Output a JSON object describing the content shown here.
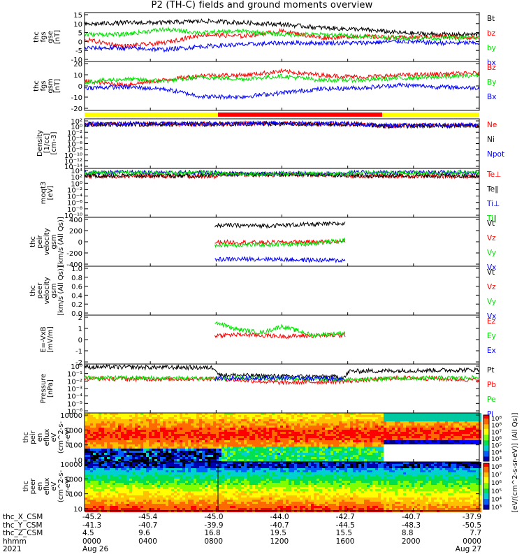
{
  "title": "P2 (TH-C) fields and ground moments overview",
  "colors": {
    "black": "#000000",
    "red": "#ff0000",
    "green": "#00e000",
    "blue": "#0000ff",
    "yellow": "#ffff00",
    "navy": "#0000c0",
    "teal": "#2a8a8a"
  },
  "chart_data": [
    {
      "type": "line",
      "ylabel": [
        "thc",
        "fgs",
        "gse",
        "[nT]"
      ],
      "yticks": [
        "15",
        "10",
        "5",
        "0",
        "-5",
        "-10"
      ],
      "ylim": [
        -13,
        16
      ],
      "series": [
        {
          "name": "Bt",
          "color": "black",
          "pts": [
            [
              0,
              9
            ],
            [
              0.1,
              10
            ],
            [
              0.2,
              10
            ],
            [
              0.3,
              11
            ],
            [
              0.4,
              10
            ],
            [
              0.5,
              9
            ],
            [
              0.6,
              7
            ],
            [
              0.7,
              6
            ],
            [
              0.8,
              4
            ],
            [
              0.9,
              3
            ],
            [
              1,
              3
            ]
          ]
        },
        {
          "name": "bz",
          "color": "red",
          "pts": [
            [
              0,
              0
            ],
            [
              0.1,
              -4
            ],
            [
              0.2,
              -2
            ],
            [
              0.3,
              3
            ],
            [
              0.4,
              2
            ],
            [
              0.5,
              5
            ],
            [
              0.6,
              1
            ],
            [
              0.7,
              2
            ],
            [
              0.8,
              1
            ],
            [
              0.9,
              2
            ],
            [
              1,
              1
            ]
          ]
        },
        {
          "name": "by",
          "color": "green",
          "pts": [
            [
              0,
              3
            ],
            [
              0.1,
              3
            ],
            [
              0.2,
              6
            ],
            [
              0.3,
              4
            ],
            [
              0.4,
              5
            ],
            [
              0.5,
              3
            ],
            [
              0.6,
              3
            ],
            [
              0.7,
              2
            ],
            [
              0.8,
              1
            ],
            [
              0.9,
              1
            ],
            [
              1,
              1
            ]
          ]
        },
        {
          "name": "bx",
          "color": "blue",
          "pts": [
            [
              0,
              -5
            ],
            [
              0.1,
              -5
            ],
            [
              0.2,
              -6
            ],
            [
              0.3,
              -4
            ],
            [
              0.4,
              -3
            ],
            [
              0.5,
              -2
            ],
            [
              0.6,
              -2
            ],
            [
              0.7,
              -2
            ],
            [
              0.8,
              -1
            ],
            [
              0.9,
              -2
            ],
            [
              1,
              -2
            ]
          ]
        }
      ]
    },
    {
      "type": "line",
      "ylabel": [
        "thc",
        "fgs",
        "gsm",
        "[nT]"
      ],
      "yticks": [
        "20",
        "10",
        "0",
        "-10",
        "-20"
      ],
      "ylim": [
        -28,
        22
      ],
      "series": [
        {
          "name": "Bz",
          "color": "red",
          "pts": [
            [
              0,
              2
            ],
            [
              0.1,
              -2
            ],
            [
              0.2,
              3
            ],
            [
              0.3,
              8
            ],
            [
              0.4,
              8
            ],
            [
              0.5,
              12
            ],
            [
              0.6,
              8
            ],
            [
              0.7,
              6
            ],
            [
              0.8,
              8
            ],
            [
              0.9,
              9
            ],
            [
              1,
              10
            ]
          ]
        },
        {
          "name": "By",
          "color": "green",
          "pts": [
            [
              0,
              1
            ],
            [
              0.1,
              4
            ],
            [
              0.2,
              2
            ],
            [
              0.3,
              6
            ],
            [
              0.4,
              4
            ],
            [
              0.5,
              7
            ],
            [
              0.6,
              3
            ],
            [
              0.7,
              3
            ],
            [
              0.8,
              5
            ],
            [
              0.9,
              6
            ],
            [
              1,
              8
            ]
          ]
        },
        {
          "name": "Bx",
          "color": "blue",
          "pts": [
            [
              0,
              -5
            ],
            [
              0.1,
              -4
            ],
            [
              0.2,
              -6
            ],
            [
              0.3,
              -14
            ],
            [
              0.4,
              -14
            ],
            [
              0.5,
              -10
            ],
            [
              0.6,
              -6
            ],
            [
              0.7,
              -5
            ],
            [
              0.8,
              -2
            ],
            [
              0.9,
              -4
            ],
            [
              1,
              -5
            ]
          ]
        }
      ]
    },
    {
      "type": "line",
      "ylabel": [
        "Density",
        "[1/cc]",
        "[cm-3]"
      ],
      "yticks": [
        "10²",
        "10⁰",
        "10⁻²",
        "10⁻⁴",
        "10⁻⁶",
        "10⁻⁸",
        "10⁻¹⁰",
        "10⁻¹²",
        "10⁻¹⁴"
      ],
      "ylim": [
        -15,
        2.6
      ],
      "series": [
        {
          "name": "Ne",
          "color": "red",
          "pts": [
            [
              0,
              0.7
            ],
            [
              0.3,
              0.8
            ],
            [
              0.5,
              0.9
            ],
            [
              0.7,
              0.7
            ],
            [
              0.75,
              0.1
            ],
            [
              1,
              0.3
            ]
          ]
        },
        {
          "name": "Ni",
          "color": "black",
          "pts": [
            [
              0,
              0.6
            ],
            [
              0.3,
              0.7
            ],
            [
              0.5,
              0.8
            ],
            [
              0.7,
              0.6
            ],
            [
              0.75,
              0.0
            ],
            [
              1,
              0.2
            ]
          ]
        },
        {
          "name": "Npot",
          "color": "blue",
          "pts": [
            [
              0,
              0.8
            ],
            [
              0.3,
              0.9
            ],
            [
              0.5,
              1.0
            ],
            [
              0.7,
              0.8
            ],
            [
              0.75,
              0.2
            ],
            [
              1,
              0.4
            ]
          ]
        }
      ]
    },
    {
      "type": "line",
      "ylabel": [
        "moqt3",
        "[eV]"
      ],
      "yticks": [
        "10⁴",
        "10²",
        "10⁰",
        "10⁻²",
        "10⁻⁴",
        "10⁻⁶",
        "10⁻⁸",
        "10⁻¹⁰"
      ],
      "ylim": [
        -10.5,
        4.8
      ],
      "series": [
        {
          "name": "Te⊥",
          "color": "red",
          "pts": [
            [
              0,
              2.4
            ],
            [
              0.33,
              2.4
            ],
            [
              0.34,
              2.9
            ],
            [
              0.66,
              2.7
            ],
            [
              0.67,
              2.4
            ],
            [
              1,
              2.4
            ]
          ]
        },
        {
          "name": "Te∥",
          "color": "black",
          "pts": [
            [
              0,
              2.5
            ],
            [
              0.33,
              2.5
            ],
            [
              0.34,
              3.0
            ],
            [
              0.66,
              2.8
            ],
            [
              0.67,
              2.5
            ],
            [
              1,
              2.5
            ]
          ]
        },
        {
          "name": "Ti⊥",
          "color": "navy",
          "pts": [
            [
              0,
              3.5
            ],
            [
              0.33,
              3.5
            ],
            [
              0.34,
              3.2
            ],
            [
              0.66,
              3.2
            ],
            [
              0.67,
              3.5
            ],
            [
              1,
              3.5
            ]
          ]
        },
        {
          "name": "Ti∥",
          "color": "green",
          "pts": [
            [
              0,
              3.4
            ],
            [
              0.33,
              3.4
            ],
            [
              0.34,
              3.1
            ],
            [
              0.66,
              3.1
            ],
            [
              0.67,
              3.4
            ],
            [
              1,
              3.4
            ]
          ]
        }
      ]
    },
    {
      "type": "line",
      "ylabel": [
        "thc",
        "peir",
        "velocity",
        "gsm",
        "[km/s (All Qs)]"
      ],
      "yticks": [
        "400",
        "200",
        "0",
        "-200",
        "-400"
      ],
      "ylim": [
        -450,
        480
      ],
      "series": [
        {
          "name": "Vt",
          "color": "black",
          "pts": [
            [
              0.33,
              330
            ],
            [
              0.45,
              320
            ],
            [
              0.55,
              340
            ],
            [
              0.66,
              360
            ]
          ]
        },
        {
          "name": "Vz",
          "color": "red",
          "pts": [
            [
              0.33,
              10
            ],
            [
              0.45,
              0
            ],
            [
              0.55,
              10
            ],
            [
              0.66,
              20
            ]
          ]
        },
        {
          "name": "Vy",
          "color": "green",
          "pts": [
            [
              0.33,
              -50
            ],
            [
              0.45,
              -40
            ],
            [
              0.55,
              -30
            ],
            [
              0.66,
              40
            ]
          ]
        },
        {
          "name": "Vx",
          "color": "blue",
          "pts": [
            [
              0.33,
              -320
            ],
            [
              0.45,
              -310
            ],
            [
              0.55,
              -330
            ],
            [
              0.66,
              -340
            ]
          ]
        }
      ]
    },
    {
      "type": "line",
      "ylabel": [
        "thc",
        "peer",
        "velocity",
        "gsm",
        "[km/s (All Qs)]"
      ],
      "yticks": [
        "1.0",
        "0.8",
        "0.6",
        "0.4",
        "0.2",
        "0.0"
      ],
      "ylim": [
        -0.05,
        1.05
      ],
      "series": [
        {
          "name": "Vt",
          "color": "black",
          "pts": []
        },
        {
          "name": "Vz",
          "color": "red",
          "pts": []
        },
        {
          "name": "Vy",
          "color": "green",
          "pts": []
        },
        {
          "name": "Vx",
          "color": "blue",
          "pts": []
        }
      ]
    },
    {
      "type": "line",
      "ylabel": [
        "E=-VxB",
        "[mV/m]"
      ],
      "yticks": [
        "2",
        "1",
        "0",
        "-1",
        "-2"
      ],
      "ylim": [
        -2.6,
        2.7
      ],
      "series": [
        {
          "name": "Ez",
          "color": "red",
          "pts": [
            [
              0.33,
              0.5
            ],
            [
              0.4,
              0.6
            ],
            [
              0.5,
              0.4
            ],
            [
              0.6,
              0.5
            ],
            [
              0.66,
              0.5
            ]
          ]
        },
        {
          "name": "Ey",
          "color": "green",
          "pts": [
            [
              0.33,
              2.0
            ],
            [
              0.38,
              1.2
            ],
            [
              0.45,
              0.8
            ],
            [
              0.5,
              1.5
            ],
            [
              0.58,
              0.5
            ],
            [
              0.66,
              0.8
            ]
          ]
        },
        {
          "name": "Ex",
          "color": "blue",
          "pts": []
        }
      ]
    },
    {
      "type": "line",
      "ylabel": [
        "Pressure",
        "[nPa]"
      ],
      "yticks": [
        "10⁰",
        "10⁻¹",
        "10⁻²",
        "10⁻³",
        "10⁻⁴",
        "10⁻⁵",
        "10⁻⁶"
      ],
      "ylim": [
        -6.4,
        0.4
      ],
      "series": [
        {
          "name": "Pt",
          "color": "black",
          "pts": [
            [
              0,
              0
            ],
            [
              0.33,
              -0.1
            ],
            [
              0.34,
              -1.1
            ],
            [
              0.5,
              -1.3
            ],
            [
              0.66,
              -1.4
            ],
            [
              0.67,
              -0.6
            ],
            [
              1,
              -0.4
            ]
          ]
        },
        {
          "name": "Pb",
          "color": "red",
          "pts": [
            [
              0,
              -1.6
            ],
            [
              0.2,
              -1.7
            ],
            [
              0.33,
              -1.6
            ],
            [
              0.5,
              -2.2
            ],
            [
              0.66,
              -2.0
            ],
            [
              0.8,
              -1.5
            ],
            [
              1,
              -1.8
            ]
          ]
        },
        {
          "name": "Pe",
          "color": "green",
          "pts": [
            [
              0,
              -1.5
            ],
            [
              0.33,
              -1.6
            ],
            [
              0.5,
              -1.6
            ],
            [
              0.66,
              -1.8
            ],
            [
              0.8,
              -1.6
            ],
            [
              1,
              -1.5
            ]
          ]
        },
        {
          "name": "Pi",
          "color": "blue",
          "pts": [
            [
              0.33,
              -1.6
            ],
            [
              0.5,
              -1.5
            ],
            [
              0.66,
              -1.7
            ]
          ]
        }
      ]
    },
    {
      "type": "heatmap",
      "ylabel": [
        "thc",
        "peir",
        "en",
        "eflux",
        "eV",
        "(cm^2-s-",
        "sr-eV)"
      ],
      "yticks": [
        "10000",
        "1000",
        "100",
        "10"
      ],
      "ylim": [
        4,
        20000
      ]
    },
    {
      "type": "heatmap",
      "ylabel": [
        "thc",
        "peer",
        "en",
        "eflux",
        "eV",
        "(cm^2-s-",
        "sr-eV)"
      ],
      "yticks": [
        "10000",
        "1000",
        "100",
        "10"
      ],
      "ylim": [
        4,
        20000
      ]
    }
  ],
  "colorbar": {
    "labels": [
      "10⁸",
      "10⁸",
      "10⁷",
      "10⁶",
      "10⁵",
      "10⁴",
      "10³"
    ],
    "labels2": [
      "10⁸",
      "10⁷",
      "10⁶",
      "10⁵",
      "10⁴",
      "10³"
    ],
    "title": "[eV/(cm^2-s-sr-eV)] (All Qs)]"
  },
  "ephemeris": {
    "row_labels": [
      "thc_X_CSM",
      "thc_Y_CSM",
      "thc_Z_CSM",
      "hhmm",
      "2021"
    ],
    "columns": [
      [
        "-45.2",
        "-41.3",
        "4.5",
        "0000",
        "Aug 26"
      ],
      [
        "-45.4",
        "-40.7",
        "9.6",
        "0400",
        ""
      ],
      [
        "-45.0",
        "-39.9",
        "16.8",
        "0800",
        ""
      ],
      [
        "-44.0",
        "-40.7",
        "19.5",
        "1200",
        ""
      ],
      [
        "-42.7",
        "-44.5",
        "15.5",
        "1600",
        ""
      ],
      [
        "-40.7",
        "-48.3",
        "8.8",
        "2000",
        ""
      ],
      [
        "-37.9",
        "-50.5",
        "7.7",
        "0000",
        "Aug 27"
      ]
    ]
  }
}
